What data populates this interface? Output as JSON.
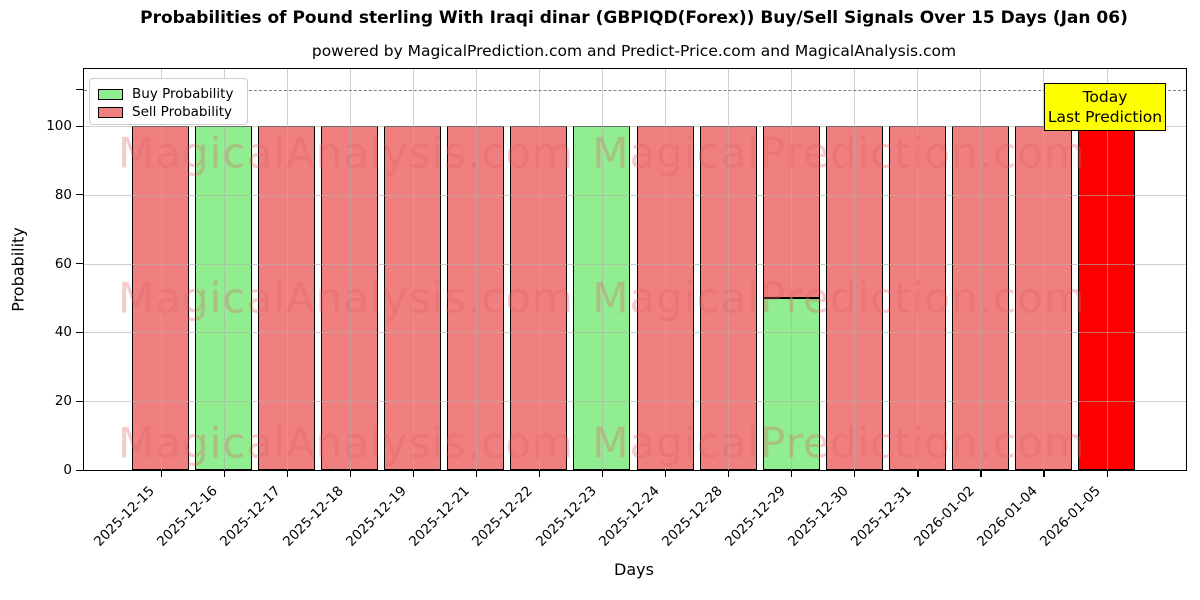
{
  "title": "Probabilities of Pound sterling With Iraqi dinar (GBPIQD(Forex)) Buy/Sell Signals Over 15 Days (Jan 06)",
  "subtitle": "powered by MagicalPrediction.com and Predict-Price.com and MagicalAnalysis.com",
  "axes": {
    "xlabel": "Days",
    "ylabel": "Probability",
    "yticks": [
      0,
      20,
      40,
      60,
      80,
      100
    ]
  },
  "legend": {
    "items": [
      {
        "label": "Buy Probability",
        "color": "#90ee90"
      },
      {
        "label": "Sell Probability",
        "color": "#f08080"
      }
    ]
  },
  "annotation_box": {
    "lines": [
      "Today",
      "Last Prediction"
    ],
    "bg": "#ffff00"
  },
  "chart_data": {
    "type": "bar",
    "stacked": true,
    "title": "Probabilities of Pound sterling With Iraqi dinar (GBPIQD(Forex)) Buy/Sell Signals Over 15 Days (Jan 06)",
    "xlabel": "Days",
    "ylabel": "Probability",
    "categories": [
      "2025-12-15",
      "2025-12-16",
      "2025-12-17",
      "2025-12-18",
      "2025-12-19",
      "2025-12-21",
      "2025-12-22",
      "2025-12-23",
      "2025-12-24",
      "2025-12-28",
      "2025-12-29",
      "2025-12-30",
      "2025-12-31",
      "2026-01-02",
      "2026-01-04",
      "2026-01-05"
    ],
    "series": [
      {
        "name": "Buy Probability",
        "color": "#90ee90",
        "values": [
          0,
          100,
          0,
          0,
          0,
          0,
          0,
          100,
          0,
          0,
          50,
          0,
          0,
          0,
          0,
          0
        ]
      },
      {
        "name": "Sell Probability",
        "color": "#f08080",
        "values": [
          100,
          0,
          100,
          100,
          100,
          100,
          100,
          0,
          100,
          100,
          50,
          100,
          100,
          100,
          100,
          100
        ]
      }
    ],
    "today_bar": {
      "index": 15,
      "category": "2026-01-05",
      "color": "#ff0000"
    },
    "ylim": [
      0,
      116.6
    ],
    "yticks": [
      0,
      20,
      40,
      60,
      80,
      100
    ],
    "dashed_line_y": 110.6,
    "bar_edge_color": "#000000",
    "grid": true,
    "legend_position": "upper left",
    "watermarks": [
      "MagicalAnalysis.com",
      "MagicalPrediction.com"
    ]
  }
}
